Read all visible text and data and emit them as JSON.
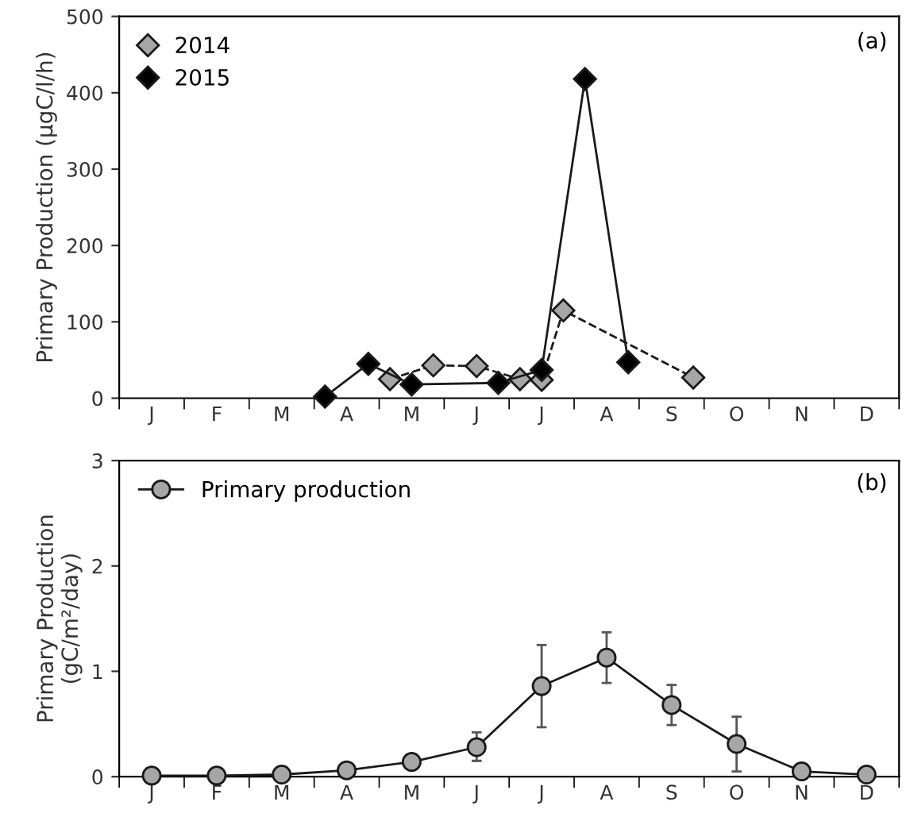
{
  "chart_data": [
    {
      "type": "line",
      "ylabel": "Primary Production (µgC/l/h)",
      "categories": [
        null,
        "J",
        null,
        null,
        "F",
        null,
        null,
        "M",
        null,
        null,
        "A",
        null,
        null,
        "M",
        null,
        null,
        "J",
        null,
        null,
        "J",
        null,
        null,
        "A",
        null,
        null,
        "S",
        null,
        null,
        "O",
        null,
        null,
        "N",
        null,
        null,
        "D",
        null
      ],
      "ylim": [
        0,
        500
      ],
      "yticks": [
        0,
        100,
        200,
        300,
        400,
        500
      ],
      "marker": "diamond",
      "legend": "top left",
      "grid": false,
      "annotations": [
        "(a)"
      ],
      "series": [
        {
          "name": "2014",
          "color": "#a6a6a6",
          "line_style": "dashed",
          "values": [
            null,
            null,
            null,
            null,
            null,
            null,
            null,
            null,
            null,
            null,
            null,
            null,
            25,
            null,
            43,
            null,
            42,
            null,
            25,
            24,
            115,
            null,
            null,
            null,
            null,
            null,
            27,
            null,
            null,
            null,
            null,
            null,
            null,
            null,
            null,
            null
          ]
        },
        {
          "name": "2015",
          "color": "#000000",
          "line_style": "solid",
          "values": [
            null,
            null,
            null,
            null,
            null,
            null,
            null,
            null,
            null,
            2,
            null,
            45,
            null,
            18,
            null,
            null,
            null,
            20,
            null,
            37,
            null,
            418,
            null,
            47,
            null,
            null,
            null,
            null,
            null,
            null,
            null,
            null,
            null,
            null,
            null,
            null
          ]
        }
      ]
    },
    {
      "type": "line",
      "ylabel": "Primary Production\n(gC/m²/day)",
      "categories": [
        "J",
        "F",
        "M",
        "A",
        "M",
        "J",
        "J",
        "A",
        "S",
        "O",
        "N",
        "D"
      ],
      "ylim": [
        0,
        3
      ],
      "yticks": [
        0,
        1,
        2,
        3
      ],
      "marker": "circle",
      "legend": "top left",
      "grid": false,
      "annotations": [
        "(b)"
      ],
      "series": [
        {
          "name": "Primary production",
          "color": "#a6a6a6",
          "line_style": "solid",
          "values": [
            0.01,
            0.01,
            0.02,
            0.06,
            0.14,
            0.28,
            0.86,
            1.13,
            0.68,
            0.31,
            0.05,
            0.02
          ],
          "errors": [
            null,
            null,
            null,
            null,
            null,
            [
              0.15,
              0.42
            ],
            [
              0.47,
              1.25
            ],
            [
              0.89,
              1.37
            ],
            [
              0.49,
              0.87
            ],
            [
              0.05,
              0.57
            ],
            null,
            null
          ]
        }
      ]
    }
  ]
}
